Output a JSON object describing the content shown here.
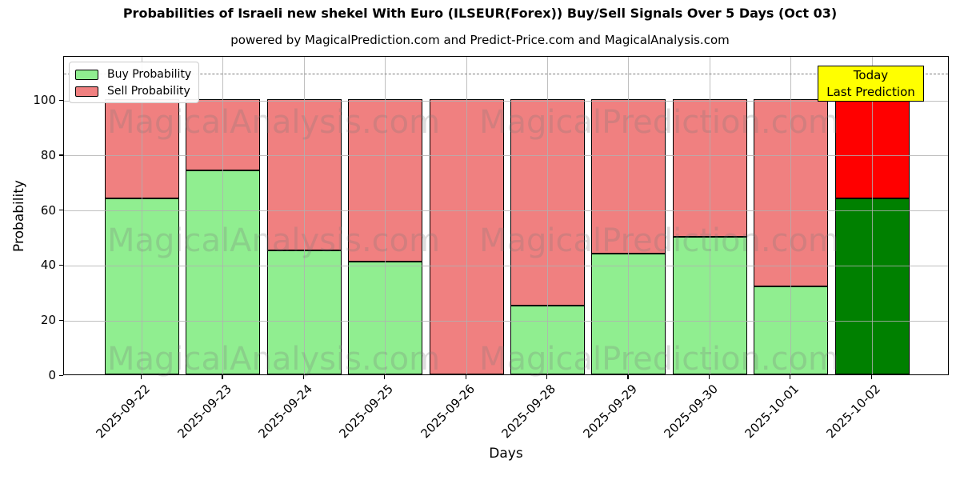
{
  "title": "Probabilities of Israeli new shekel With Euro (ILSEUR(Forex)) Buy/Sell Signals Over 5 Days (Oct 03)",
  "subtitle": "powered by MagicalPrediction.com and Predict-Price.com and MagicalAnalysis.com",
  "watermarks": {
    "left": "MagicalAnalysis.com",
    "right": "MagicalPrediction.com"
  },
  "legend": {
    "items": [
      {
        "label": "Buy Probability",
        "color": "#90ee90"
      },
      {
        "label": "Sell Probability",
        "color": "#f08080"
      }
    ]
  },
  "annotation": {
    "line1": "Today",
    "line2": "Last Prediction",
    "bg_color": "#ffff00"
  },
  "axes": {
    "xlabel": "Days",
    "ylabel": "Probability",
    "yticks": [
      0,
      20,
      40,
      60,
      80,
      100
    ],
    "ylim": [
      0,
      116
    ],
    "dashed_line_y": 110,
    "grid": true
  },
  "chart_data": {
    "type": "bar",
    "stacked": true,
    "title": "Probabilities of Israeli new shekel With Euro (ILSEUR(Forex)) Buy/Sell Signals Over 5 Days (Oct 03)",
    "xlabel": "Days",
    "ylabel": "Probability",
    "ylim": [
      0,
      116
    ],
    "legend_position": "upper left",
    "categories": [
      "2025-09-22",
      "2025-09-23",
      "2025-09-24",
      "2025-09-25",
      "2025-09-26",
      "2025-09-28",
      "2025-09-29",
      "2025-09-30",
      "2025-10-01",
      "2025-10-02"
    ],
    "series": [
      {
        "name": "Buy Probability",
        "color": "#90ee90",
        "today_color": "#008000",
        "values": [
          64,
          74,
          45,
          41,
          0,
          25,
          44,
          50,
          32,
          64
        ]
      },
      {
        "name": "Sell Probability",
        "color": "#f08080",
        "today_color": "#ff0000",
        "values": [
          36,
          26,
          55,
          59,
          100,
          75,
          56,
          50,
          68,
          36
        ]
      }
    ],
    "today_index": 9
  }
}
